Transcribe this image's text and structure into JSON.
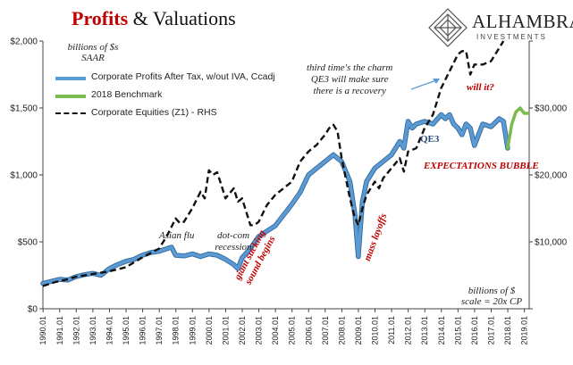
{
  "header": {
    "title_main": "Profits",
    "title_amp": " & Valuations",
    "brand_name": "ALHAMBRA",
    "brand_sub": "INVESTMENTS"
  },
  "notes": {
    "left_unit_line1": "billions of $s",
    "left_unit_line2": "SAAR",
    "right_unit_line1": "billions of $",
    "right_unit_line2": "scale = 20x CP"
  },
  "annotations": {
    "third_time_1": "third time's the charm",
    "third_time_2": "QE3 will make sure",
    "third_time_3": "there is a recovery",
    "will_it": "will it?",
    "qe3": "QE3",
    "expectations": "EXPECTATIONS BUBBLE",
    "asian_flu": "Asian flu",
    "dotcom_1": "dot-com",
    "dotcom_2": "recession",
    "giant_1": "giant sucking",
    "giant_2": "sound begins",
    "mass_layoffs": "mass layoffs"
  },
  "colors": {
    "profits": "#5b9bd5",
    "profits_outline": "#3a6e9f",
    "benchmark": "#7dba4e",
    "equities": "#111111",
    "accent_red": "#c00000"
  },
  "chart_data": {
    "type": "line",
    "left_axis": {
      "ylim": [
        0,
        2000
      ],
      "ticks": [
        "$0",
        "$500",
        "$1,000",
        "$1,500",
        "$2,000"
      ]
    },
    "right_axis": {
      "ylim": [
        0,
        40000
      ],
      "ticks": [
        "$10,000",
        "$20,000",
        "$30,000"
      ]
    },
    "x_ticks": [
      "1990.01",
      "1991.01",
      "1992.01",
      "1993.01",
      "1994.01",
      "1995.01",
      "1996.01",
      "1997.01",
      "1998.01",
      "1999.01",
      "2000.01",
      "2001.01",
      "2002.01",
      "2003.01",
      "2004.01",
      "2005.01",
      "2006.01",
      "2007.01",
      "2008.01",
      "2009.01",
      "2010.01",
      "2011.01",
      "2012.01",
      "2013.01",
      "2014.01",
      "2015.01",
      "2016.01",
      "2017.01",
      "2018.01",
      "2019.01"
    ],
    "xlim": [
      1990.0,
      2019.3
    ],
    "legend": [
      {
        "name": "Corporate Profits After Tax, w/out IVA, Ccadj",
        "color": "#5b9bd5"
      },
      {
        "name": "2018 Benchmark",
        "color": "#7dba4e"
      },
      {
        "name": "Corporate Equities (Z1) - RHS",
        "color": "#111111"
      }
    ],
    "series": [
      {
        "name": "Corporate Profits After Tax, w/out IVA, Ccadj",
        "axis": "left",
        "x": [
          1990.0,
          1990.5,
          1991.0,
          1991.5,
          1992.0,
          1992.5,
          1993.0,
          1993.5,
          1994.0,
          1994.5,
          1995.0,
          1995.5,
          1996.0,
          1996.5,
          1997.0,
          1997.5,
          1997.75,
          1998.0,
          1998.5,
          1999.0,
          1999.5,
          2000.0,
          2000.5,
          2001.0,
          2001.5,
          2001.75,
          2002.0,
          2002.5,
          2003.0,
          2003.5,
          2004.0,
          2004.5,
          2005.0,
          2005.5,
          2006.0,
          2006.5,
          2007.0,
          2007.5,
          2008.0,
          2008.5,
          2008.8,
          2009.0,
          2009.25,
          2009.5,
          2010.0,
          2010.5,
          2011.0,
          2011.5,
          2011.75,
          2012.0,
          2012.25,
          2012.5,
          2013.0,
          2013.5,
          2014.0,
          2014.25,
          2014.5,
          2014.75,
          2015.0,
          2015.25,
          2015.5,
          2015.75,
          2016.0,
          2016.5,
          2017.0,
          2017.5,
          2017.75,
          2018.0
        ],
        "values": [
          190,
          205,
          220,
          215,
          240,
          255,
          265,
          250,
          300,
          330,
          355,
          370,
          400,
          420,
          430,
          450,
          460,
          400,
          395,
          410,
          390,
          410,
          400,
          370,
          330,
          300,
          380,
          450,
          540,
          580,
          620,
          700,
          780,
          870,
          1000,
          1050,
          1100,
          1150,
          1100,
          950,
          700,
          390,
          800,
          950,
          1050,
          1100,
          1150,
          1250,
          1200,
          1400,
          1350,
          1380,
          1400,
          1380,
          1450,
          1420,
          1450,
          1380,
          1350,
          1300,
          1380,
          1350,
          1220,
          1380,
          1360,
          1420,
          1400,
          1200
        ]
      },
      {
        "name": "2018 Benchmark",
        "axis": "left",
        "x": [
          2018.0,
          2018.25,
          2018.5,
          2018.75,
          2019.0,
          2019.25
        ],
        "values": [
          1200,
          1380,
          1470,
          1500,
          1460,
          1460
        ]
      },
      {
        "name": "Corporate Equities (Z1) - RHS",
        "axis": "right",
        "x": [
          1990.0,
          1990.75,
          1991.5,
          1992.0,
          1993.0,
          1994.0,
          1995.0,
          1996.0,
          1997.0,
          1997.5,
          1998.0,
          1998.25,
          1998.5,
          1999.0,
          1999.5,
          1999.75,
          2000.0,
          2000.25,
          2000.5,
          2000.75,
          2001.0,
          2001.5,
          2001.75,
          2002.0,
          2002.5,
          2002.75,
          2003.0,
          2003.5,
          2004.0,
          2004.5,
          2005.0,
          2005.5,
          2006.0,
          2006.5,
          2007.0,
          2007.25,
          2007.5,
          2007.75,
          2008.0,
          2008.5,
          2008.75,
          2009.0,
          2009.25,
          2009.5,
          2010.0,
          2010.25,
          2010.5,
          2011.0,
          2011.5,
          2011.75,
          2012.0,
          2012.5,
          2013.0,
          2013.5,
          2014.0,
          2014.5,
          2015.0,
          2015.25,
          2015.5,
          2015.75,
          2016.0,
          2016.5,
          2017.0,
          2017.5,
          2017.75
        ],
        "values": [
          3400,
          4000,
          4400,
          4800,
          5200,
          5600,
          6200,
          7700,
          9000,
          11000,
          13500,
          12800,
          13000,
          15000,
          17500,
          16500,
          20700,
          20000,
          20400,
          18500,
          16500,
          18000,
          16000,
          16500,
          12500,
          12500,
          13000,
          15500,
          17000,
          18000,
          19000,
          22000,
          23500,
          24500,
          26000,
          27000,
          27500,
          26500,
          22500,
          16500,
          14000,
          12500,
          15000,
          17000,
          19000,
          18000,
          19500,
          21000,
          22500,
          20500,
          23500,
          24000,
          27000,
          29000,
          33000,
          35500,
          38000,
          38500,
          38500,
          35000,
          36500,
          36500,
          37000,
          39000,
          40000
        ]
      }
    ]
  }
}
